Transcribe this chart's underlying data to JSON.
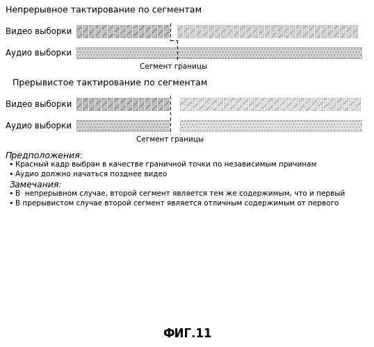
{
  "title1": "Непрерывное тактирование по сегментам",
  "title2": "Прерывистое тактирование по сегментам",
  "label_video": "Видео выборки",
  "label_audio": "Аудио выборки",
  "segment_label": "Сегмент границы",
  "assumptions_title": "Предположения:",
  "assumptions": [
    "Красный кадр выбран в качестве граничной точки по независимым причинам",
    "Аудио должно начаться позднее видео"
  ],
  "notes_title": "Замечания:",
  "notes": [
    "В  непрерывном случае, второй сегмент является тем же содержимым, что и первый",
    "В прерывистом случае второй сегмент является отличным содержимым от первого"
  ],
  "fig_label": "ФИГ.11",
  "bg_color": "#ffffff"
}
